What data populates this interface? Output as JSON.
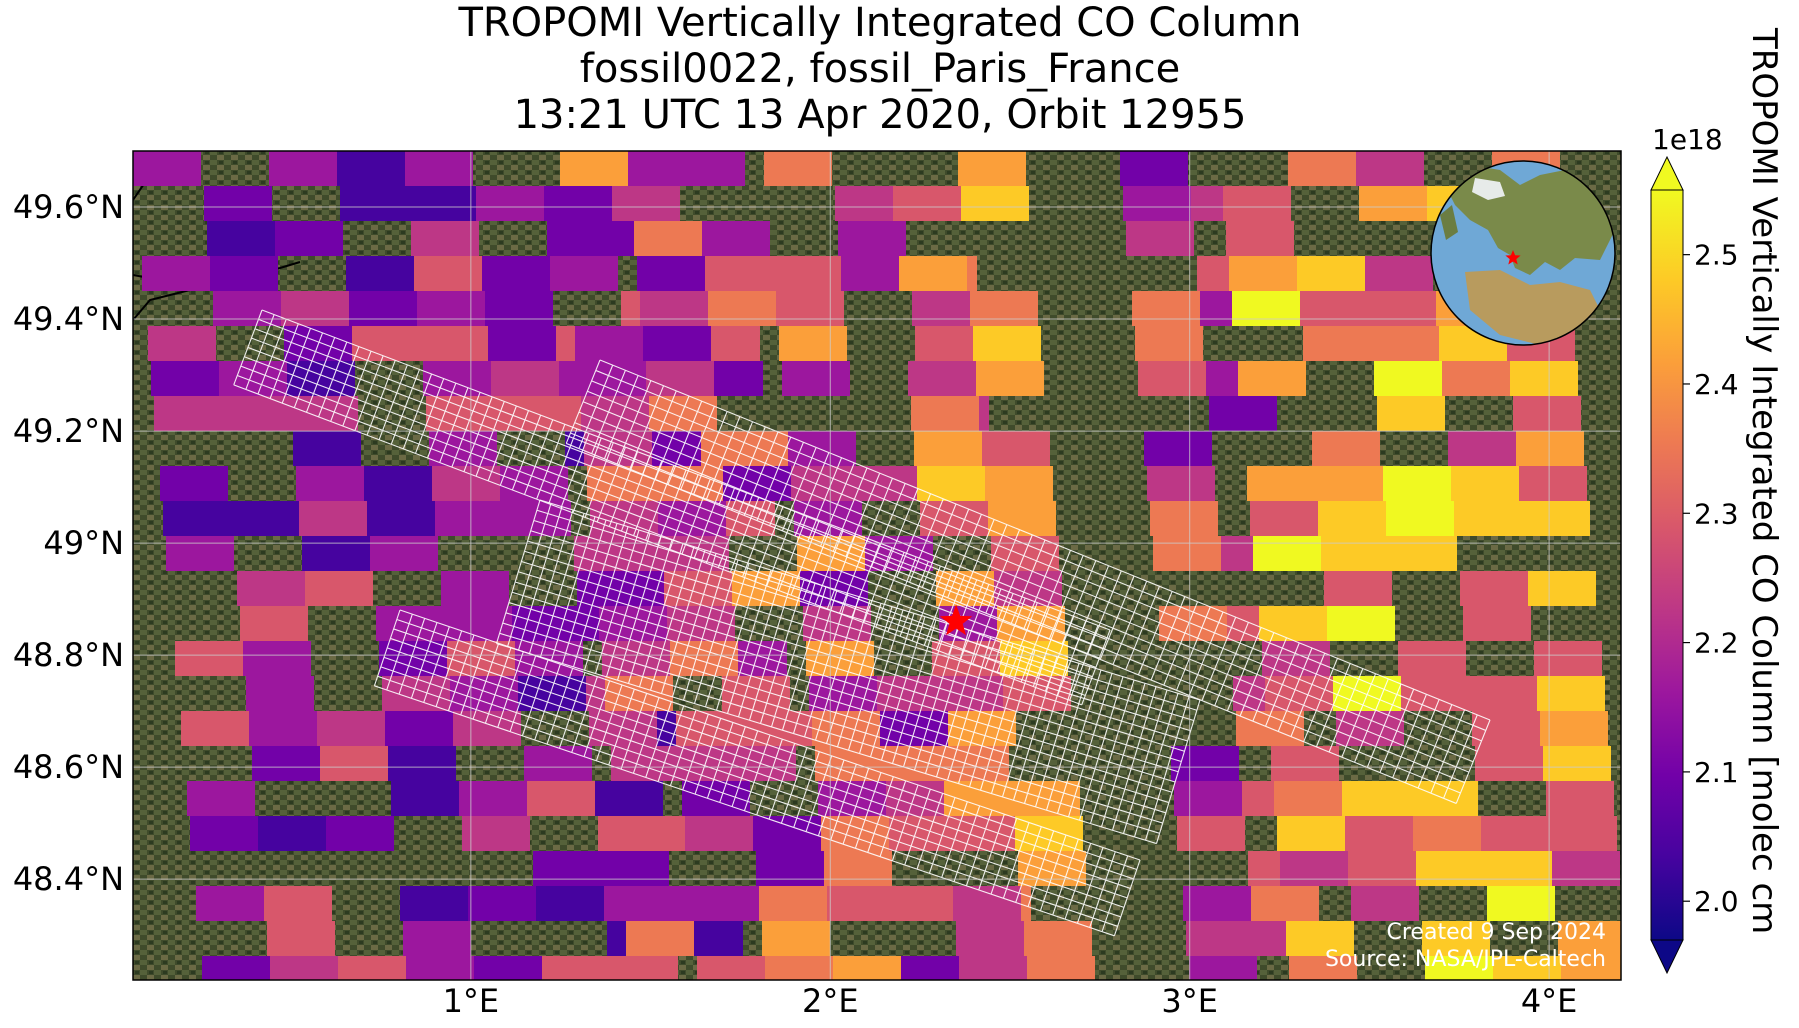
{
  "title": {
    "line1": "TROPOMI Vertically Integrated CO Column",
    "line2": "fossil0022, fossil_Paris_France",
    "line3": "13:21 UTC 13 Apr 2020, Orbit 12955"
  },
  "map": {
    "lon_range": [
      0.06,
      4.2
    ],
    "lat_range": [
      48.22,
      49.7
    ],
    "lon_ticks": [
      1,
      2,
      3,
      4
    ],
    "lat_ticks": [
      48.4,
      48.6,
      48.8,
      49.0,
      49.2,
      49.4,
      49.6
    ],
    "lon_tick_labels": [
      "1°E",
      "2°E",
      "3°E",
      "4°E"
    ],
    "lat_tick_labels": [
      "48.4°N",
      "48.6°N",
      "48.8°N",
      "49°N",
      "49.2°N",
      "49.4°N",
      "49.6°N"
    ],
    "site_marker": {
      "lon": 2.35,
      "lat": 48.86,
      "color": "#ff0000",
      "icon": "star-icon"
    },
    "gridlines": true
  },
  "colorbar": {
    "label": "TROPOMI Vertically Integrated CO Column [molec cm",
    "multiplier": "1e18",
    "vmin": 1.97,
    "vmax": 2.55,
    "ticks": [
      "2.0",
      "2.1",
      "2.2",
      "2.3",
      "2.4",
      "2.5"
    ],
    "tick_values": [
      2.0,
      2.1,
      2.2,
      2.3,
      2.4,
      2.5
    ],
    "colormap": "plasma",
    "extend": "both"
  },
  "inset_globe": {
    "icon": "globe-icon",
    "marker_color": "#ff0000"
  },
  "footer": {
    "created": "Created 9 Sep 2024",
    "source": "Source: NASA/JPL-Caltech"
  },
  "colors": {
    "plasma": [
      "#0d0887",
      "#46039f",
      "#7201a8",
      "#9c179e",
      "#bd3786",
      "#d8576b",
      "#ed7953",
      "#fb9f3a",
      "#fdca26",
      "#f0f921"
    ],
    "ocean": "#6fa8d6",
    "land": "#3d4a2a",
    "target_outline": "#ffffff"
  }
}
